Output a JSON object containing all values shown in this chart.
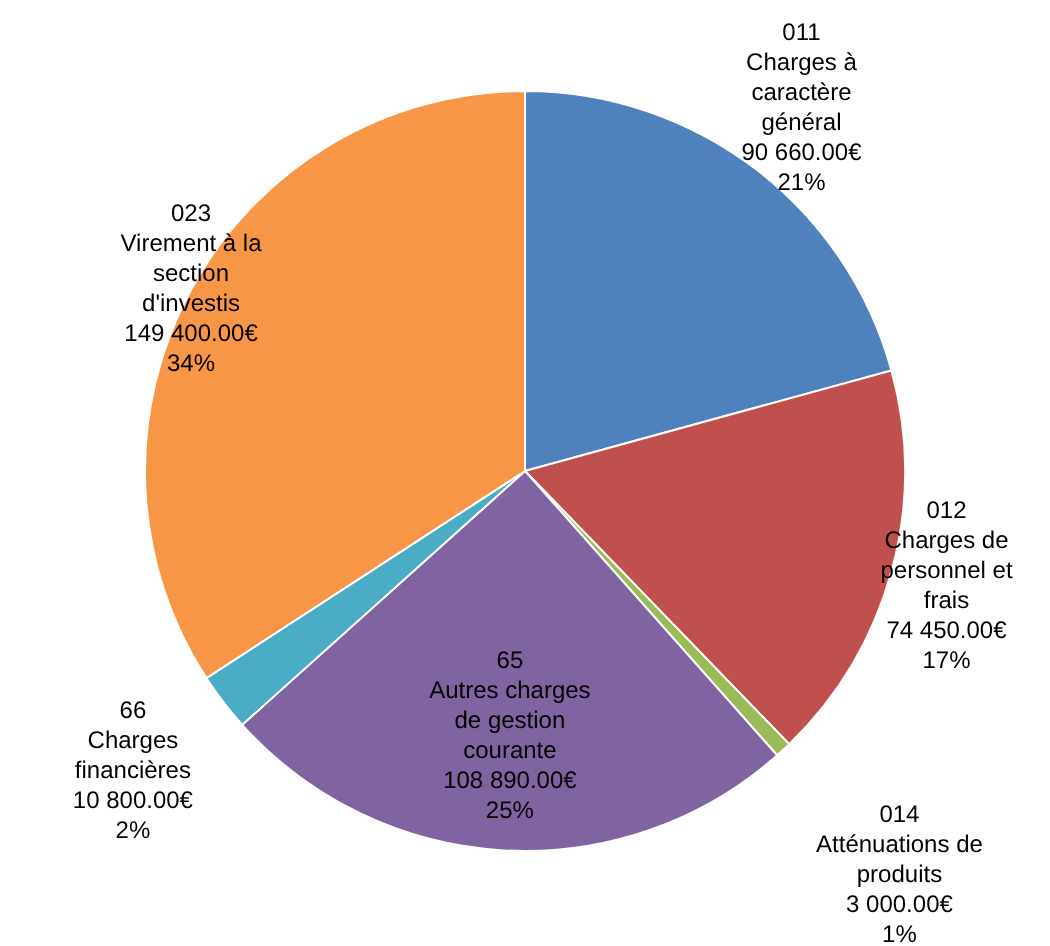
{
  "chart_data": {
    "type": "pie",
    "categories": [
      "011\nCharges à\ncaractère\ngénéral",
      "012\nCharges de\npersonnel et\nfrais",
      "014\nAtténuations de\nproduits",
      "65\nAutres charges\nde gestion\ncourante",
      "66\nCharges\nfinancières",
      "023\nVirement à la\nsection\nd'investis"
    ],
    "values": [
      90660,
      74450,
      3000,
      108890,
      10800,
      149400
    ],
    "colors": [
      "#4f81bd",
      "#c0504d",
      "#9bbb59",
      "#8064a2",
      "#4bacc6",
      "#f79646"
    ],
    "value_labels": [
      "90 660.00€\n21%",
      "74 450.00€\n17%",
      "3 000.00€\n1%",
      "108 890.00€\n25%",
      "10 800.00€\n2%",
      "149 400.00€\n34%"
    ],
    "legend": false
  }
}
